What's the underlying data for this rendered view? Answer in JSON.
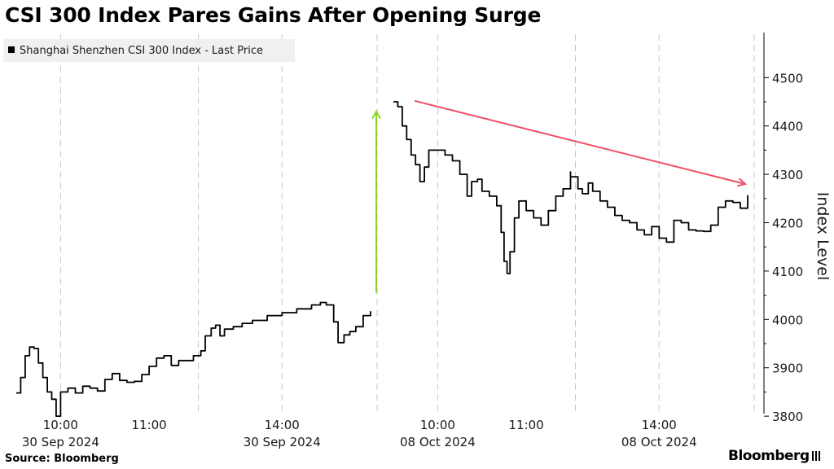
{
  "chart_data": {
    "type": "line",
    "title": "CSI 300 Index Pares Gains After Opening Surge",
    "legend": "Shanghai Shenzhen CSI 300 Index - Last Price",
    "legend_position": "top-left",
    "ylabel": "Index Level",
    "ylim": [
      3740,
      4510
    ],
    "yticks": [
      3800,
      3900,
      4000,
      4100,
      4200,
      4300,
      4400,
      4500
    ],
    "sessions": [
      {
        "date": "30 Sep 2024",
        "time_labels": [
          "10:00",
          "11:00",
          "14:00"
        ]
      },
      {
        "date": "08 Oct 2024",
        "time_labels": [
          "10:00",
          "11:00",
          "14:00"
        ]
      }
    ],
    "series": [
      {
        "name": "Shanghai Shenzhen CSI 300 Index - Last Price",
        "segments": [
          {
            "session": "30 Sep 2024",
            "points": [
              [
                "09:30",
                3848
              ],
              [
                "09:33",
                3880
              ],
              [
                "09:36",
                3925
              ],
              [
                "09:39",
                3943
              ],
              [
                "09:42",
                3940
              ],
              [
                "09:45",
                3910
              ],
              [
                "09:48",
                3880
              ],
              [
                "09:51",
                3850
              ],
              [
                "09:54",
                3835
              ],
              [
                "09:57",
                3800
              ],
              [
                "10:00",
                3850
              ],
              [
                "10:05",
                3858
              ],
              [
                "10:10",
                3848
              ],
              [
                "10:15",
                3862
              ],
              [
                "10:20",
                3858
              ],
              [
                "10:25",
                3852
              ],
              [
                "10:30",
                3876
              ],
              [
                "10:35",
                3888
              ],
              [
                "10:40",
                3874
              ],
              [
                "10:45",
                3870
              ],
              [
                "10:50",
                3872
              ],
              [
                "10:55",
                3886
              ],
              [
                "11:00",
                3903
              ],
              [
                "11:05",
                3920
              ],
              [
                "11:10",
                3925
              ],
              [
                "11:15",
                3905
              ],
              [
                "11:20",
                3915
              ],
              [
                "11:25",
                3915
              ],
              [
                "11:30",
                3920
              ],
              [
                "13:00",
                3925
              ],
              [
                "13:05",
                3935
              ],
              [
                "13:08",
                3966
              ],
              [
                "13:12",
                3982
              ],
              [
                "13:15",
                3988
              ],
              [
                "13:18",
                3966
              ],
              [
                "13:21",
                3980
              ],
              [
                "13:27",
                3985
              ],
              [
                "13:33",
                3992
              ],
              [
                "13:40",
                3998
              ],
              [
                "13:50",
                4008
              ],
              [
                "14:00",
                4014
              ],
              [
                "14:10",
                4022
              ],
              [
                "14:20",
                4030
              ],
              [
                "14:26",
                4035
              ],
              [
                "14:30",
                4030
              ],
              [
                "14:35",
                3995
              ],
              [
                "14:38",
                3952
              ],
              [
                "14:42",
                3968
              ],
              [
                "14:46",
                3975
              ],
              [
                "14:50",
                3985
              ],
              [
                "14:55",
                4008
              ],
              [
                "15:00",
                4017
              ]
            ]
          },
          {
            "session": "08 Oct 2024",
            "points": [
              [
                "09:30",
                4450
              ],
              [
                "09:33",
                4440
              ],
              [
                "09:36",
                4400
              ],
              [
                "09:39",
                4372
              ],
              [
                "09:42",
                4340
              ],
              [
                "09:45",
                4320
              ],
              [
                "09:48",
                4285
              ],
              [
                "09:51",
                4315
              ],
              [
                "09:54",
                4350
              ],
              [
                "10:00",
                4350
              ],
              [
                "10:05",
                4340
              ],
              [
                "10:10",
                4328
              ],
              [
                "10:15",
                4300
              ],
              [
                "10:20",
                4255
              ],
              [
                "10:23",
                4285
              ],
              [
                "10:27",
                4290
              ],
              [
                "10:30",
                4265
              ],
              [
                "10:35",
                4255
              ],
              [
                "10:40",
                4235
              ],
              [
                "10:43",
                4180
              ],
              [
                "10:45",
                4120
              ],
              [
                "10:47",
                4095
              ],
              [
                "10:49",
                4140
              ],
              [
                "10:52",
                4210
              ],
              [
                "10:55",
                4245
              ],
              [
                "11:00",
                4225
              ],
              [
                "11:05",
                4210
              ],
              [
                "11:10",
                4195
              ],
              [
                "11:15",
                4225
              ],
              [
                "11:20",
                4255
              ],
              [
                "11:25",
                4270
              ],
              [
                "11:30",
                4305
              ],
              [
                "13:00",
                4295
              ],
              [
                "13:05",
                4270
              ],
              [
                "13:08",
                4260
              ],
              [
                "13:12",
                4282
              ],
              [
                "13:15",
                4265
              ],
              [
                "13:20",
                4245
              ],
              [
                "13:25",
                4232
              ],
              [
                "13:30",
                4215
              ],
              [
                "13:35",
                4205
              ],
              [
                "13:40",
                4200
              ],
              [
                "13:45",
                4185
              ],
              [
                "13:50",
                4175
              ],
              [
                "13:55",
                4192
              ],
              [
                "14:00",
                4168
              ],
              [
                "14:05",
                4160
              ],
              [
                "14:10",
                4205
              ],
              [
                "14:15",
                4200
              ],
              [
                "14:20",
                4185
              ],
              [
                "14:25",
                4183
              ],
              [
                "14:30",
                4182
              ],
              [
                "14:35",
                4195
              ],
              [
                "14:40",
                4232
              ],
              [
                "14:45",
                4245
              ],
              [
                "14:50",
                4242
              ],
              [
                "14:55",
                4230
              ],
              [
                "15:00",
                4257
              ]
            ]
          }
        ]
      }
    ],
    "annotations": [
      {
        "type": "arrow",
        "color": "#8cd225",
        "from": [
          "30 Sep 2024 15:00",
          4055
        ],
        "to": [
          "08 Oct 2024 09:30",
          4430
        ]
      },
      {
        "type": "arrow",
        "color": "#ef5167",
        "from": [
          "08 Oct 2024 09:33",
          4452
        ],
        "to": [
          "08 Oct 2024 15:00",
          4280
        ]
      }
    ],
    "grid": {
      "vertical": true,
      "horizontal": false
    },
    "colors": {
      "line": "#000000",
      "grid": "#c8c8c8",
      "legend_bg": "#f0f0f0"
    }
  },
  "footer": {
    "source": "Source: Bloomberg",
    "brand": "Bloomberg"
  }
}
